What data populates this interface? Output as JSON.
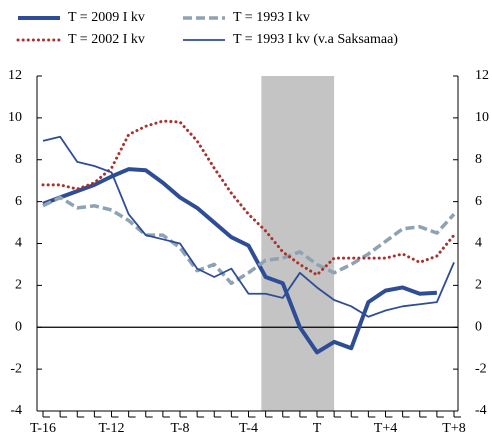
{
  "chart_data": {
    "type": "line",
    "categories": [
      "T-16",
      null,
      null,
      null,
      "T-12",
      null,
      null,
      null,
      "T-8",
      null,
      null,
      null,
      "T-4",
      null,
      null,
      null,
      "T",
      null,
      null,
      null,
      "T+4",
      null,
      null,
      null,
      "T+8"
    ],
    "series": [
      {
        "name": "T = 2009 I kv",
        "color": "#2e4d96",
        "style": "solid",
        "line_width": 4,
        "values": [
          5.9,
          6.2,
          6.5,
          6.8,
          7.2,
          7.55,
          7.5,
          6.9,
          6.2,
          5.7,
          5.0,
          4.3,
          3.9,
          2.4,
          2.1,
          0,
          -1.2,
          -0.7,
          -1.0,
          1.2,
          1.75,
          1.9,
          1.6,
          1.65,
          null
        ]
      },
      {
        "name": "T = 1993 I kv",
        "color": "#8da2b2",
        "style": "dashed",
        "line_width": 3.5,
        "values": [
          5.8,
          6.2,
          5.7,
          5.8,
          5.6,
          5.1,
          4.4,
          4.4,
          3.8,
          2.7,
          3.0,
          2.1,
          2.6,
          3.2,
          3.3,
          3.6,
          3.0,
          2.6,
          3.0,
          3.5,
          4.1,
          4.7,
          4.8,
          4.5,
          5.4
        ]
      },
      {
        "name": "T = 2002 I kv",
        "color": "#a8322d",
        "style": "dotted",
        "line_width": 3,
        "values": [
          6.8,
          6.8,
          6.6,
          6.9,
          7.6,
          9.2,
          9.6,
          9.85,
          9.8,
          8.9,
          7.6,
          6.4,
          5.4,
          4.6,
          3.6,
          3.0,
          2.5,
          3.3,
          3.3,
          3.3,
          3.3,
          3.5,
          3.1,
          3.4,
          4.4
        ]
      },
      {
        "name": "T = 1993 I kv (v.a Saksamaa)",
        "color": "#2e4d96",
        "style": "solid",
        "line_width": 1.8,
        "values": [
          8.9,
          9.1,
          7.9,
          7.7,
          7.4,
          5.4,
          4.4,
          4.2,
          4.0,
          2.8,
          2.4,
          2.8,
          1.6,
          1.6,
          1.4,
          2.6,
          1.9,
          1.3,
          1.0,
          0.5,
          0.8,
          1.0,
          1.1,
          1.2,
          3.1
        ]
      }
    ],
    "shaded_range": [
      12.75,
      17
    ],
    "ylim": [
      -4,
      12
    ],
    "yticks": [
      -4,
      -2,
      0,
      2,
      4,
      6,
      8,
      10,
      12
    ],
    "y2lim": [
      -4,
      12
    ],
    "y2ticks": [
      -4,
      -2,
      0,
      2,
      4,
      6,
      8,
      10,
      12
    ]
  }
}
